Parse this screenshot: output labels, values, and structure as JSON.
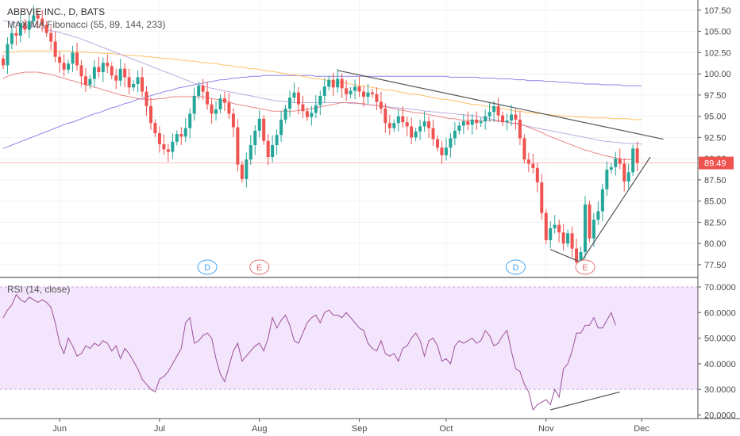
{
  "colors": {
    "up": "#26a69a",
    "down": "#ef5350",
    "ma55": "#e57373",
    "ma89": "#b39ddb",
    "ma144": "#ffb74d",
    "ma233": "#7e6ce4",
    "rsi": "#9c4f9c",
    "rsi_band": "#f3e5fb",
    "trend": "#555555",
    "price_tag": "#ef5350",
    "d_marker": "#42a5f5",
    "e_marker": "#e57373"
  },
  "chart_data": [
    {
      "type": "candlestick",
      "title": "ABBVIE INC., D, BATS",
      "indicator_label": "MAX MA Fibonacci (55, 89, 144, 233)",
      "ylim": [
        76,
        108.7
      ],
      "y_ticks": [
        "107.50",
        "105.00",
        "102.50",
        "100.00",
        "97.50",
        "95.00",
        "92.50",
        "90.00",
        "87.50",
        "85.00",
        "82.50",
        "80.00",
        "77.50"
      ],
      "last_price": "89.49",
      "markers": [
        {
          "label": "D",
          "index": 47,
          "kind": "dividend"
        },
        {
          "label": "E",
          "index": 59,
          "kind": "earnings"
        },
        {
          "label": "D",
          "index": 118,
          "kind": "dividend"
        },
        {
          "label": "E",
          "index": 134,
          "kind": "earnings"
        }
      ],
      "trendlines": [
        {
          "from": [
            77,
            100.4
          ],
          "to": [
            152,
            92.3
          ]
        },
        {
          "from": [
            126,
            79.3
          ],
          "to": [
            133,
            77.8
          ]
        },
        {
          "from": [
            133,
            77.8
          ],
          "to": [
            149,
            90.2
          ]
        }
      ],
      "closes": [
        101.0,
        103.5,
        104.8,
        104.5,
        106.0,
        105.2,
        106.2,
        106.9,
        106.5,
        105.8,
        104.8,
        103.8,
        102.0,
        101.3,
        100.5,
        101.2,
        102.5,
        101.0,
        99.7,
        98.7,
        99.4,
        100.8,
        100.2,
        101.3,
        100.9,
        99.8,
        99.2,
        100.6,
        99.6,
        98.4,
        98.8,
        99.6,
        97.9,
        96.2,
        94.2,
        93.0,
        91.7,
        91.1,
        90.8,
        92.0,
        92.9,
        92.6,
        93.6,
        95.3,
        97.4,
        98.6,
        97.9,
        96.4,
        95.3,
        95.8,
        97.1,
        96.6,
        95.3,
        93.7,
        89.3,
        87.6,
        89.9,
        91.6,
        93.3,
        94.7,
        92.1,
        90.2,
        91.6,
        92.8,
        94.6,
        95.9,
        97.2,
        97.8,
        96.4,
        95.6,
        94.9,
        95.4,
        96.3,
        97.4,
        98.5,
        99.3,
        98.4,
        99.4,
        98.3,
        97.6,
        98.0,
        98.5,
        97.9,
        97.3,
        97.8,
        97.6,
        96.7,
        95.9,
        94.2,
        93.6,
        94.2,
        95.0,
        94.3,
        93.8,
        92.5,
        93.2,
        93.8,
        94.4,
        93.6,
        92.3,
        91.3,
        90.4,
        91.3,
        92.4,
        93.3,
        93.9,
        94.4,
        94.0,
        94.6,
        94.2,
        94.4,
        95.0,
        95.5,
        96.2,
        95.1,
        94.3,
        94.5,
        95.2,
        94.6,
        92.4,
        89.9,
        89.4,
        88.9,
        87.2,
        83.6,
        80.4,
        81.8,
        82.2,
        81.3,
        80.0,
        81.2,
        79.4,
        77.8,
        79.0,
        84.6,
        80.6,
        82.8,
        83.8,
        86.4,
        88.7,
        89.0,
        90.0,
        89.4,
        87.3,
        88.4,
        91.2,
        89.5
      ],
      "opens": [
        101.8,
        101.0,
        103.5,
        104.8,
        104.5,
        106.0,
        105.2,
        106.2,
        106.9,
        106.5,
        105.8,
        104.8,
        103.8,
        102.0,
        101.3,
        100.5,
        101.2,
        102.5,
        101.0,
        99.7,
        98.7,
        99.4,
        100.8,
        100.2,
        101.3,
        100.9,
        99.8,
        99.2,
        100.6,
        99.6,
        98.4,
        98.8,
        99.6,
        97.9,
        96.2,
        94.2,
        93.0,
        91.7,
        91.1,
        90.8,
        92.0,
        92.9,
        92.6,
        93.6,
        95.3,
        97.4,
        98.6,
        97.9,
        96.4,
        95.3,
        95.8,
        97.1,
        96.6,
        95.3,
        93.7,
        89.3,
        87.6,
        89.9,
        91.6,
        93.3,
        94.7,
        92.1,
        90.2,
        91.6,
        92.8,
        94.6,
        95.9,
        97.2,
        97.8,
        96.4,
        95.6,
        94.9,
        95.4,
        96.3,
        97.4,
        98.5,
        99.3,
        98.4,
        99.4,
        98.3,
        97.6,
        98.0,
        98.5,
        97.9,
        97.3,
        97.8,
        97.6,
        96.7,
        95.9,
        94.2,
        93.6,
        94.2,
        95.0,
        94.3,
        93.8,
        92.5,
        93.2,
        93.8,
        94.4,
        93.6,
        92.3,
        91.3,
        90.4,
        91.3,
        92.4,
        93.3,
        93.9,
        94.4,
        94.0,
        94.6,
        94.2,
        94.4,
        95.0,
        95.5,
        96.2,
        95.1,
        94.3,
        94.5,
        95.2,
        94.6,
        92.4,
        89.9,
        89.4,
        88.9,
        87.2,
        83.6,
        80.4,
        81.8,
        82.2,
        81.3,
        80.0,
        81.2,
        79.4,
        77.8,
        79.0,
        84.6,
        80.6,
        82.8,
        83.8,
        86.4,
        88.7,
        89.0,
        90.0,
        89.4,
        87.3,
        88.4,
        91.2
      ],
      "ma55": [
        99.5,
        99.7,
        99.9,
        100.0,
        100.1,
        100.2,
        100.2,
        100.2,
        100.2,
        100.1,
        100.0,
        99.9,
        99.8,
        99.6,
        99.5,
        99.3,
        99.2,
        99.0,
        98.9,
        98.7,
        98.6,
        98.4,
        98.3,
        98.1,
        98.0,
        97.8,
        97.7,
        97.5,
        97.4,
        97.3,
        97.2,
        97.1,
        97.0,
        97.0,
        97.0,
        97.0,
        97.1,
        97.1,
        97.2,
        97.3,
        97.3,
        97.3,
        97.3,
        97.3,
        97.3,
        97.3,
        97.3,
        97.2,
        97.1,
        97.0,
        96.9,
        96.8,
        96.7,
        96.5,
        96.4,
        96.3,
        96.2,
        96.1,
        96.0,
        95.9,
        95.8,
        95.7,
        95.6,
        95.6,
        95.6,
        95.6,
        95.6,
        95.6,
        95.7,
        95.7,
        95.8,
        95.9,
        96.0,
        96.1,
        96.2,
        96.3,
        96.4,
        96.5,
        96.6,
        96.6,
        96.6,
        96.6,
        96.5,
        96.5,
        96.4,
        96.3,
        96.3,
        96.2,
        96.1,
        96.0,
        95.9,
        95.8,
        95.7,
        95.6,
        95.5,
        95.4,
        95.4,
        95.3,
        95.2,
        95.1,
        95.0,
        94.9,
        94.8,
        94.7,
        94.7,
        94.6,
        94.5,
        94.5,
        94.5,
        94.5,
        94.5,
        94.5,
        94.5,
        94.5,
        94.4,
        94.4,
        94.3,
        94.2,
        94.2,
        94.1,
        93.9,
        93.7,
        93.5,
        93.3,
        93.1,
        92.8,
        92.6,
        92.4,
        92.2,
        92.0,
        91.8,
        91.6,
        91.4,
        91.2,
        91.0,
        90.9,
        90.7,
        90.6,
        90.4,
        90.3,
        90.2,
        90.1,
        90.0,
        89.9,
        89.9,
        89.9
      ],
      "ma89": [
        106.3,
        106.2,
        106.1,
        106.0,
        105.9,
        105.8,
        105.7,
        105.6,
        105.5,
        105.4,
        105.2,
        105.1,
        105.0,
        104.9,
        104.7,
        104.6,
        104.4,
        104.3,
        104.1,
        103.9,
        103.7,
        103.5,
        103.3,
        103.1,
        102.9,
        102.7,
        102.5,
        102.3,
        102.1,
        101.9,
        101.7,
        101.5,
        101.3,
        101.1,
        100.9,
        100.7,
        100.5,
        100.3,
        100.1,
        99.9,
        99.7,
        99.5,
        99.3,
        99.1,
        98.9,
        98.7,
        98.6,
        98.4,
        98.3,
        98.2,
        98.1,
        98.0,
        97.9,
        97.8,
        97.7,
        97.6,
        97.5,
        97.4,
        97.3,
        97.2,
        97.1,
        97.0,
        96.9,
        96.8,
        96.8,
        96.7,
        96.7,
        96.6,
        96.6,
        96.6,
        96.6,
        96.6,
        96.6,
        96.6,
        96.6,
        96.6,
        96.6,
        96.6,
        96.6,
        96.6,
        96.5,
        96.5,
        96.5,
        96.4,
        96.4,
        96.3,
        96.3,
        96.2,
        96.2,
        96.1,
        96.0,
        96.0,
        95.9,
        95.9,
        95.8,
        95.8,
        95.7,
        95.6,
        95.6,
        95.5,
        95.5,
        95.4,
        95.4,
        95.3,
        95.3,
        95.2,
        95.2,
        95.1,
        95.1,
        95.0,
        94.9,
        94.8,
        94.7,
        94.6,
        94.5,
        94.4,
        94.3,
        94.2,
        94.1,
        94.0,
        93.9,
        93.8,
        93.7,
        93.6,
        93.5,
        93.4,
        93.3,
        93.2,
        93.1,
        93.0,
        92.9,
        92.8,
        92.7,
        92.6,
        92.5,
        92.4,
        92.3,
        92.2,
        92.1,
        92.0,
        92.0,
        91.9,
        91.9,
        91.8,
        91.8,
        91.8,
        91.8,
        91.7
      ],
      "ma144": [
        102.6,
        102.6,
        102.6,
        102.6,
        102.7,
        102.7,
        102.7,
        102.7,
        102.7,
        102.7,
        102.7,
        102.7,
        102.7,
        102.7,
        102.7,
        102.7,
        102.6,
        102.6,
        102.6,
        102.6,
        102.5,
        102.5,
        102.5,
        102.4,
        102.4,
        102.4,
        102.3,
        102.3,
        102.2,
        102.2,
        102.2,
        102.1,
        102.1,
        102.0,
        102.0,
        101.9,
        101.9,
        101.8,
        101.8,
        101.7,
        101.7,
        101.6,
        101.6,
        101.5,
        101.5,
        101.4,
        101.3,
        101.3,
        101.2,
        101.2,
        101.1,
        101.0,
        101.0,
        100.9,
        100.8,
        100.8,
        100.7,
        100.6,
        100.6,
        100.5,
        100.4,
        100.3,
        100.3,
        100.2,
        100.1,
        100.0,
        99.9,
        99.9,
        99.8,
        99.7,
        99.6,
        99.5,
        99.4,
        99.4,
        99.3,
        99.2,
        99.1,
        99.0,
        99.0,
        98.9,
        98.8,
        98.7,
        98.6,
        98.6,
        98.5,
        98.4,
        98.3,
        98.2,
        98.1,
        98.1,
        98.0,
        97.9,
        97.8,
        97.7,
        97.6,
        97.6,
        97.5,
        97.4,
        97.3,
        97.2,
        97.1,
        97.0,
        97.0,
        96.9,
        96.8,
        96.7,
        96.6,
        96.5,
        96.4,
        96.4,
        96.3,
        96.2,
        96.1,
        96.0,
        95.9,
        95.9,
        95.8,
        95.7,
        95.6,
        95.6,
        95.5,
        95.4,
        95.4,
        95.3,
        95.3,
        95.2,
        95.2,
        95.1,
        95.1,
        95.0,
        95.0,
        95.0,
        94.9,
        94.9,
        94.9,
        94.8,
        94.8,
        94.8,
        94.8,
        94.8,
        94.7,
        94.7,
        94.7,
        94.7,
        94.7,
        94.6,
        94.6,
        94.6
      ],
      "ma233": [
        91.2,
        91.4,
        91.6,
        91.8,
        92.0,
        92.2,
        92.4,
        92.6,
        92.8,
        93.0,
        93.2,
        93.4,
        93.6,
        93.8,
        94.0,
        94.2,
        94.3,
        94.5,
        94.7,
        94.9,
        95.1,
        95.3,
        95.4,
        95.6,
        95.8,
        96.0,
        96.1,
        96.3,
        96.5,
        96.6,
        96.8,
        97.0,
        97.1,
        97.3,
        97.4,
        97.6,
        97.7,
        97.9,
        98.0,
        98.1,
        98.3,
        98.4,
        98.5,
        98.6,
        98.7,
        98.8,
        98.9,
        99.0,
        99.1,
        99.2,
        99.3,
        99.3,
        99.4,
        99.5,
        99.5,
        99.6,
        99.6,
        99.7,
        99.7,
        99.7,
        99.8,
        99.8,
        99.8,
        99.8,
        99.8,
        99.8,
        99.8,
        99.8,
        99.8,
        99.8,
        99.8,
        99.8,
        99.7,
        99.7,
        99.7,
        99.7,
        99.7,
        99.7,
        99.7,
        99.7,
        99.7,
        99.7,
        99.7,
        99.7,
        99.7,
        99.7,
        99.7,
        99.7,
        99.7,
        99.7,
        99.7,
        99.7,
        99.7,
        99.7,
        99.7,
        99.7,
        99.7,
        99.7,
        99.7,
        99.7,
        99.7,
        99.7,
        99.7,
        99.6,
        99.6,
        99.6,
        99.6,
        99.6,
        99.6,
        99.6,
        99.5,
        99.5,
        99.5,
        99.5,
        99.4,
        99.4,
        99.4,
        99.4,
        99.3,
        99.3,
        99.3,
        99.2,
        99.2,
        99.2,
        99.2,
        99.1,
        99.1,
        99.1,
        99.0,
        99.0,
        99.0,
        98.9,
        98.9,
        98.9,
        98.8,
        98.8,
        98.8,
        98.8,
        98.7,
        98.7,
        98.7,
        98.7,
        98.7,
        98.6,
        98.6,
        98.6,
        98.6,
        98.6
      ]
    },
    {
      "type": "line",
      "title": "RSI (14, close)",
      "ylim": [
        18.6,
        73.4
      ],
      "y_ticks": [
        "70.0000",
        "60.0000",
        "50.0000",
        "40.0000",
        "30.0000",
        "20.0000"
      ],
      "band": [
        30,
        70
      ],
      "x_ticks": [
        {
          "label": "Jun",
          "index": 13
        },
        {
          "label": "Jul",
          "index": 36
        },
        {
          "label": "Aug",
          "index": 59
        },
        {
          "label": "Sep",
          "index": 82
        },
        {
          "label": "Oct",
          "index": 102
        },
        {
          "label": "Nov",
          "index": 125
        },
        {
          "label": "Dec",
          "index": 147
        }
      ],
      "values": [
        58,
        61,
        63,
        67,
        65,
        64,
        66,
        65,
        64,
        65,
        64,
        62,
        56,
        48,
        44,
        50,
        47,
        43,
        44,
        47,
        46,
        48,
        47,
        49,
        48,
        45,
        47,
        42,
        46,
        44,
        41,
        38,
        34,
        32,
        30,
        29,
        34,
        35,
        37,
        40,
        43,
        46,
        56,
        58,
        48,
        49,
        51,
        52,
        50,
        42,
        36,
        33,
        39,
        45,
        48,
        41,
        43,
        45,
        47,
        48,
        45,
        50,
        58,
        54,
        57,
        59,
        55,
        49,
        48,
        52,
        56,
        58,
        59,
        56,
        60,
        61,
        59,
        59,
        58,
        60,
        58,
        56,
        54,
        53,
        48,
        46,
        45,
        49,
        44,
        43,
        44,
        41,
        46,
        47,
        50,
        52,
        49,
        43,
        49,
        50,
        47,
        41,
        42,
        40,
        47,
        49,
        48,
        49,
        50,
        48,
        49,
        53,
        51,
        47,
        48,
        51,
        53,
        45,
        38,
        37,
        32,
        29,
        22,
        24,
        25,
        26,
        24,
        30,
        27,
        38,
        40,
        45,
        52,
        52,
        55,
        55,
        58,
        54,
        54,
        57,
        60,
        55
      ],
      "trendlines": [
        {
          "from": [
            126,
            22
          ],
          "to": [
            142,
            29
          ]
        }
      ]
    }
  ]
}
